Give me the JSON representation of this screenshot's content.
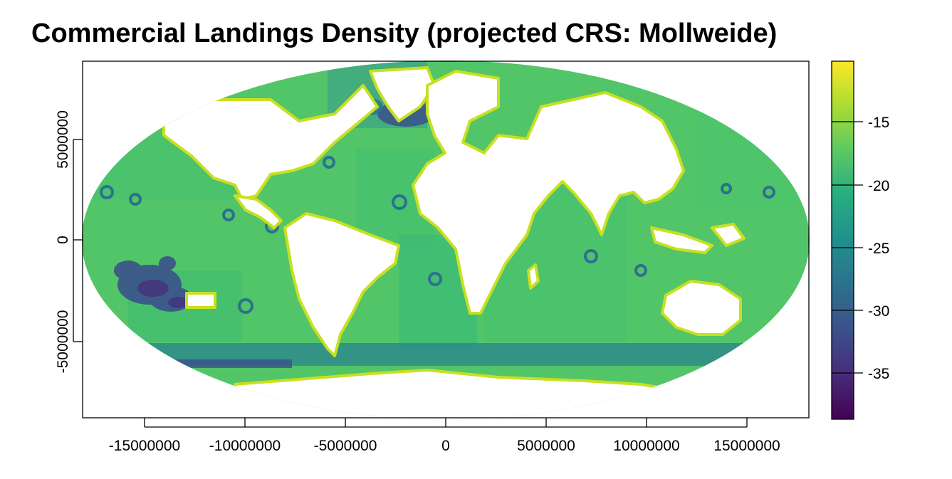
{
  "title": "Commercial Landings Density (projected CRS: Mollweide)",
  "map": {
    "x_ticks": [
      "-15000000",
      "-10000000",
      "-5000000",
      "0",
      "5000000",
      "10000000",
      "15000000"
    ],
    "x_tick_values": [
      -15000000,
      -10000000,
      -5000000,
      0,
      5000000,
      10000000,
      15000000
    ],
    "y_ticks": [
      "-5000000",
      "0",
      "5000000"
    ],
    "y_tick_values": [
      -5000000,
      0,
      5000000
    ],
    "x_range": [
      -18000000,
      18000000
    ],
    "y_range": [
      -8900000,
      8900000
    ]
  },
  "legend": {
    "ticks": [
      "-15",
      "-20",
      "-25",
      "-30",
      "-35"
    ],
    "tick_values": [
      -15,
      -20,
      -25,
      -30,
      -35
    ],
    "range": [
      -38.7,
      -10.5
    ],
    "colors": [
      "#440154",
      "#472c7a",
      "#3b518b",
      "#2c718e",
      "#21908d",
      "#27ad81",
      "#5cc863",
      "#aadc32",
      "#fde725"
    ]
  },
  "colors": {
    "ocean_base": "#5cc863",
    "ocean_mid": "#3fbc73",
    "ocean_dark": "#2c718e",
    "ocean_deep": "#3b518b",
    "coast": "#c8e020",
    "land": "#ffffff"
  }
}
